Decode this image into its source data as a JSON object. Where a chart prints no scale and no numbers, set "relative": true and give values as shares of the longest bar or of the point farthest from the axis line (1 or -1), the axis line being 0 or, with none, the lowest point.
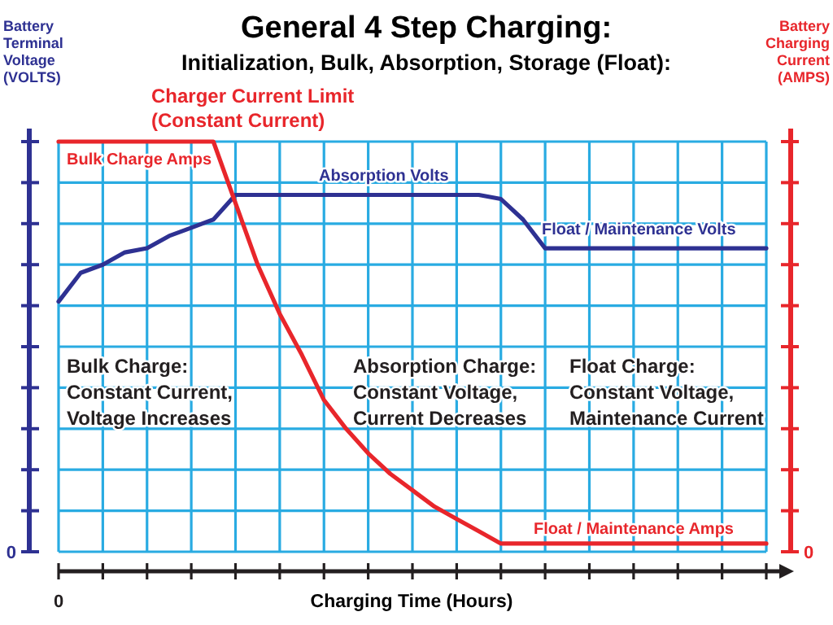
{
  "chart_data": {
    "type": "line",
    "title": "General 4 Step Charging:",
    "subtitle": "Initialization, Bulk, Absorption, Storage (Float):",
    "xlabel": "Charging Time (Hours)",
    "ylabel": "Battery\nTerminal\nVoltage\n(VOLTS)",
    "y2label": "Battery\nCharging\nCurrent\n(AMPS)",
    "relative": true,
    "grid": true,
    "marker": "none",
    "line_style": "solid",
    "categories": [
      null,
      null,
      null,
      null,
      null,
      null,
      null,
      null,
      null,
      null,
      null,
      null,
      null,
      null,
      null,
      null,
      null,
      null,
      null,
      null,
      null,
      null,
      null,
      null,
      null,
      null,
      null,
      null,
      null,
      null,
      null,
      null,
      null
    ],
    "series": [
      {
        "color": "#2e3192",
        "values": [
          0.61,
          0.68,
          0.7,
          0.73,
          0.74,
          0.77,
          0.79,
          0.81,
          0.87,
          0.87,
          0.87,
          0.87,
          0.87,
          0.87,
          0.87,
          0.87,
          0.87,
          0.87,
          0.87,
          0.87,
          0.86,
          0.81,
          0.74,
          0.74,
          0.74,
          0.74,
          0.74,
          0.74,
          0.74,
          0.74,
          0.74,
          0.74,
          0.74
        ]
      },
      {
        "color": "#e8262b",
        "values": [
          1,
          1,
          1,
          1,
          1,
          1,
          1,
          1,
          0.85,
          0.7,
          0.58,
          0.48,
          0.37,
          0.3,
          0.24,
          0.19,
          0.15,
          0.11,
          0.08,
          0.05,
          0.02,
          0.02,
          0.02,
          0.02,
          0.02,
          0.02,
          0.02,
          0.02,
          0.02,
          0.02,
          0.02,
          0.02,
          0.02
        ]
      }
    ],
    "annotations": [
      "Charger Current Limit\n(Constant Current)",
      "Bulk Charge Amps",
      "Absorption Volts",
      "Float / Maintenance Volts",
      "Float / Maintenance Amps",
      "Bulk Charge:\nConstant Current,\nVoltage Increases",
      "Absorption Charge:\nConstant Voltage,\nCurrent Decreases",
      "Float Charge:\nConstant Voltage,\nMaintenance Current",
      "0",
      "0",
      "0"
    ]
  }
}
